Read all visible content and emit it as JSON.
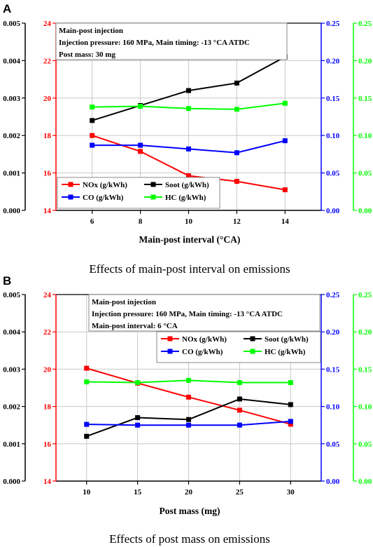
{
  "colors": {
    "nox": "#ff0000",
    "soot": "#000000",
    "co": "#0000ff",
    "hc": "#00ff00",
    "grid": "#c8c8c8"
  },
  "chart_data": [
    {
      "panel": "A",
      "type": "line",
      "xlabel": "Main-post interval (°CA)",
      "caption": "Effects of main-post interval on emissions",
      "x": [
        6,
        8,
        10,
        12,
        14
      ],
      "xlim": [
        4.5,
        15.5
      ],
      "xticks": [
        6,
        8,
        10,
        12,
        14
      ],
      "axes": {
        "soot": {
          "lim": [
            0,
            0.005
          ],
          "ticks": [
            "0.000",
            "0.001",
            "0.002",
            "0.003",
            "0.004",
            "0.005"
          ],
          "color": "#000000"
        },
        "nox": {
          "lim": [
            14,
            24
          ],
          "ticks": [
            "14",
            "16",
            "18",
            "20",
            "22",
            "24"
          ],
          "color": "#ff0000"
        },
        "co": {
          "lim": [
            0,
            0.25
          ],
          "ticks": [
            "0.00",
            "0.05",
            "0.10",
            "0.15",
            "0.20",
            "0.25"
          ],
          "color": "#0000ff"
        },
        "hc": {
          "lim": [
            0,
            0.25
          ],
          "ticks": [
            "0.00",
            "0.05",
            "0.10",
            "0.15",
            "0.20",
            "0.25"
          ],
          "color": "#00ff00"
        }
      },
      "series": [
        {
          "key": "nox",
          "name": "NOx (g/kWh)",
          "axis": "nox",
          "values": [
            18.0,
            17.15,
            15.85,
            15.55,
            15.1
          ]
        },
        {
          "key": "soot",
          "name": "Soot (g/kWh)",
          "axis": "soot",
          "values": [
            0.0024,
            0.0028,
            0.0032,
            0.0034,
            0.0041
          ]
        },
        {
          "key": "co",
          "name": "CO (g/kWh)",
          "axis": "co",
          "values": [
            0.087,
            0.087,
            0.082,
            0.077,
            0.093
          ]
        },
        {
          "key": "hc",
          "name": "HC (g/kWh)",
          "axis": "hc",
          "values": [
            0.138,
            0.139,
            0.136,
            0.135,
            0.143
          ]
        }
      ],
      "annotation": [
        "Main-post injection",
        "Injection pressure: 160 MPa, Main timing: -13 °CA ATDC",
        "Post mass: 30 mg"
      ],
      "legend_position": "bottom-left"
    },
    {
      "panel": "B",
      "type": "line",
      "xlabel": "Post mass (mg)",
      "caption": "Effects of post mass on emissions",
      "x": [
        10,
        15,
        20,
        25,
        30
      ],
      "xlim": [
        7,
        33
      ],
      "xticks": [
        10,
        15,
        20,
        25,
        30
      ],
      "axes": {
        "soot": {
          "lim": [
            0,
            0.005
          ],
          "ticks": [
            "0.000",
            "0.001",
            "0.002",
            "0.003",
            "0.004",
            "0.005"
          ],
          "color": "#000000"
        },
        "nox": {
          "lim": [
            14,
            24
          ],
          "ticks": [
            "14",
            "16",
            "18",
            "20",
            "22",
            "24"
          ],
          "color": "#ff0000"
        },
        "co": {
          "lim": [
            0,
            0.25
          ],
          "ticks": [
            "0.00",
            "0.05",
            "0.10",
            "0.15",
            "0.20",
            "0.25"
          ],
          "color": "#0000ff"
        },
        "hc": {
          "lim": [
            0,
            0.25
          ],
          "ticks": [
            "0.00",
            "0.05",
            "0.10",
            "0.15",
            "0.20",
            "0.25"
          ],
          "color": "#00ff00"
        }
      },
      "series": [
        {
          "key": "nox",
          "name": "NOx (g/kWh)",
          "axis": "nox",
          "values": [
            20.05,
            19.25,
            18.5,
            17.8,
            17.05
          ]
        },
        {
          "key": "soot",
          "name": "Soot (g/kWh)",
          "axis": "soot",
          "values": [
            0.0012,
            0.0017,
            0.00165,
            0.0022,
            0.00205
          ]
        },
        {
          "key": "co",
          "name": "CO (g/kWh)",
          "axis": "co",
          "values": [
            0.076,
            0.075,
            0.075,
            0.075,
            0.08
          ]
        },
        {
          "key": "hc",
          "name": "HC (g/kWh)",
          "axis": "hc",
          "values": [
            0.133,
            0.132,
            0.135,
            0.132,
            0.132
          ]
        }
      ],
      "annotation": [
        "Main-post injection",
        "Injection pressure: 160 MPa, Main timing: -13 °CA ATDC",
        "Main-post interval: 6 °CA"
      ],
      "legend_position": "top-right"
    }
  ]
}
